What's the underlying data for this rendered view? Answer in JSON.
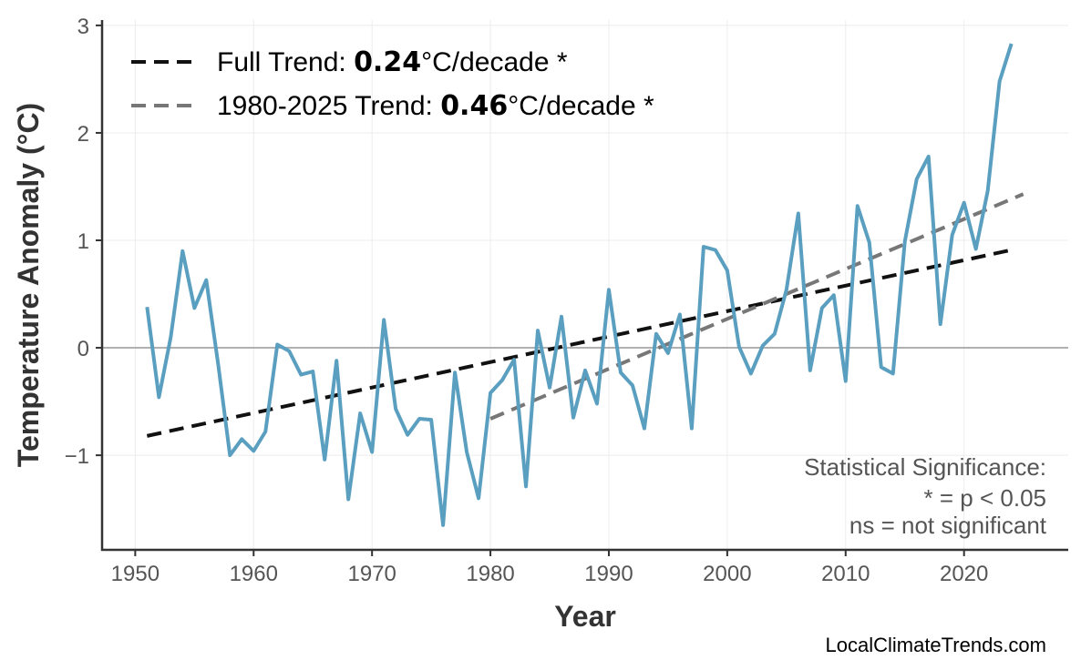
{
  "chart_data": {
    "type": "line",
    "title": "",
    "xlabel": "Year",
    "ylabel": "Temperature Anomaly (°C)",
    "xlim": [
      1947.2,
      2028.8
    ],
    "ylim": [
      -1.88,
      3.05
    ],
    "xticks": [
      1950,
      1960,
      1970,
      1980,
      1990,
      2000,
      2010,
      2020
    ],
    "yticks": [
      -1,
      0,
      1,
      2,
      3
    ],
    "ytick_labels": [
      "−1",
      "0",
      "1",
      "2",
      "3"
    ],
    "grid": true,
    "legend_position": "top-left",
    "colors": {
      "series": "#5a9fc0",
      "full_trend": "#111111",
      "recent_trend": "#777777",
      "zero_line": "#b0b0b0"
    },
    "series": [
      {
        "x": [
          1951,
          1952,
          1953,
          1954,
          1955,
          1956,
          1957,
          1958,
          1959,
          1960,
          1961,
          1962,
          1963,
          1964,
          1965,
          1966,
          1967,
          1968,
          1969,
          1970,
          1971,
          1972,
          1973,
          1974,
          1975,
          1976,
          1977,
          1978,
          1979,
          1980,
          1981,
          1982,
          1983,
          1984,
          1985,
          1986,
          1987,
          1988,
          1989,
          1990,
          1991,
          1992,
          1993,
          1994,
          1995,
          1996,
          1997,
          1998,
          1999,
          2000,
          2001,
          2002,
          2003,
          2004,
          2005,
          2006,
          2007,
          2008,
          2009,
          2010,
          2011,
          2012,
          2013,
          2014,
          2015,
          2016,
          2017,
          2018,
          2019,
          2020,
          2021,
          2022,
          2023,
          2024
        ],
        "values": [
          0.38,
          -0.46,
          0.1,
          0.9,
          0.37,
          0.63,
          -0.15,
          -1.0,
          -0.85,
          -0.96,
          -0.78,
          0.03,
          -0.03,
          -0.25,
          -0.22,
          -1.04,
          -0.12,
          -1.41,
          -0.61,
          -0.97,
          0.26,
          -0.57,
          -0.81,
          -0.66,
          -0.67,
          -1.65,
          -0.23,
          -0.97,
          -1.4,
          -0.42,
          -0.3,
          -0.11,
          -1.29,
          0.16,
          -0.37,
          0.29,
          -0.65,
          -0.21,
          -0.52,
          0.54,
          -0.23,
          -0.35,
          -0.75,
          0.13,
          -0.05,
          0.31,
          -0.75,
          0.94,
          0.91,
          0.72,
          0.01,
          -0.24,
          0.02,
          0.13,
          0.54,
          1.25,
          -0.21,
          0.37,
          0.49,
          -0.31,
          1.32,
          0.98,
          -0.18,
          -0.24,
          0.99,
          1.57,
          1.78,
          0.22,
          1.05,
          1.35,
          0.92,
          1.46,
          2.48,
          2.83
        ]
      }
    ],
    "trends": [
      {
        "name": "Full Trend",
        "x": [
          1951,
          2024
        ],
        "y": [
          -0.82,
          0.91
        ],
        "rate": "0.24",
        "unit": "°C/decade *"
      },
      {
        "name": "1980-2025 Trend",
        "x": [
          1980,
          2025
        ],
        "y": [
          -0.66,
          1.43
        ],
        "rate": "0.46",
        "unit": "°C/decade *"
      }
    ],
    "legend": [
      {
        "prefix": "Full Trend: ",
        "rate": "0.24",
        "suffix": "°C/decade *"
      },
      {
        "prefix": "1980-2025 Trend: ",
        "rate": "0.46",
        "suffix": "°C/decade *"
      }
    ],
    "annotation": [
      "Statistical Significance:",
      "* = p < 0.05",
      "ns = not significant"
    ],
    "watermark": "LocalClimateTrends.com"
  }
}
